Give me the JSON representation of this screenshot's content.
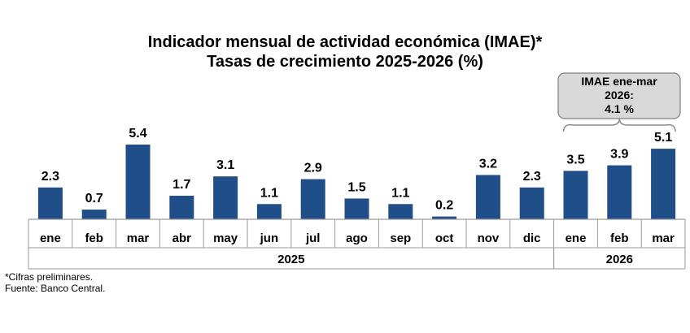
{
  "chart_data": {
    "type": "bar",
    "title": "Indicador mensual de actividad económica (IMAE)*",
    "subtitle": "Tasas de crecimiento 2025-2026 (%)",
    "categories": [
      "ene",
      "feb",
      "mar",
      "abr",
      "may",
      "jun",
      "jul",
      "ago",
      "sep",
      "oct",
      "nov",
      "dic",
      "ene",
      "feb",
      "mar"
    ],
    "values": [
      2.3,
      0.7,
      5.4,
      1.7,
      3.1,
      1.1,
      2.9,
      1.5,
      1.1,
      0.2,
      3.2,
      2.3,
      3.5,
      3.9,
      5.1
    ],
    "value_labels": [
      "2.3",
      "0.7",
      "5.4",
      "1.7",
      "3.1",
      "1.1",
      "2.9",
      "1.5",
      "1.1",
      "0.2",
      "3.2",
      "2.3",
      "3.5",
      "3.9",
      "5.1"
    ],
    "year_groups": [
      {
        "label": "2025",
        "start": 0,
        "end": 11
      },
      {
        "label": "2026",
        "start": 12,
        "end": 14
      }
    ],
    "ylim": [
      0,
      5.4
    ],
    "xlabel": "",
    "ylabel": "",
    "grid": false,
    "legend": "none",
    "bar_color": "#1f4e89",
    "annotation": {
      "lines": [
        "IMAE ene-mar",
        "2026:",
        "4.1 %"
      ],
      "applies_to_group": 1,
      "box_fill": "#d9d9d9",
      "box_stroke": "#7f7f7f"
    }
  },
  "footnotes": {
    "note": "*Cifras preliminares.",
    "source": "Fuente: Banco Central."
  }
}
